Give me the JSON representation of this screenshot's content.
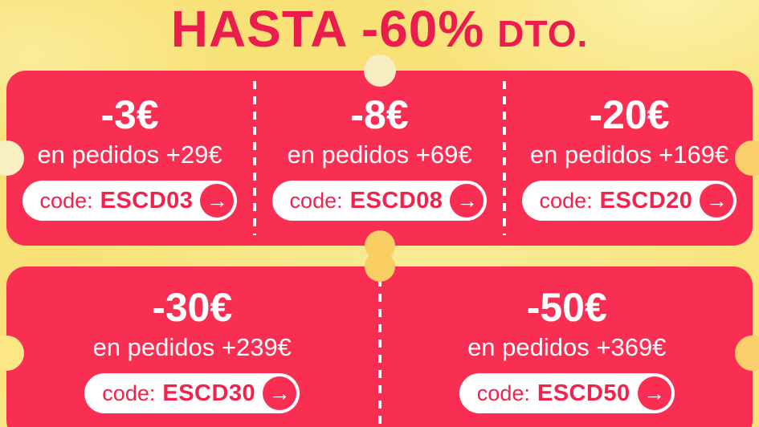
{
  "title": {
    "main": "HASTA -60%",
    "suffix": "DTO."
  },
  "icons": {
    "arrow_right": "→"
  },
  "colors": {
    "background_yellow": "#F8E177",
    "banner_red": "#F82E53",
    "title_red": "#EB1D4E",
    "pill_text_red": "#F3224D",
    "notch_cream": "#F6EEC2",
    "notch_gold": "#F9CE63",
    "text_white": "#FFFFFF"
  },
  "rows": [
    {
      "coupons": [
        {
          "discount": "-3€",
          "condition": "en pedidos +29€",
          "code_label": "code:",
          "code": "ESCD03"
        },
        {
          "discount": "-8€",
          "condition": "en pedidos +69€",
          "code_label": "code:",
          "code": "ESCD08"
        },
        {
          "discount": "-20€",
          "condition": "en pedidos +169€",
          "code_label": "code:",
          "code": "ESCD20"
        }
      ]
    },
    {
      "coupons": [
        {
          "discount": "-30€",
          "condition": "en pedidos +239€",
          "code_label": "code:",
          "code": "ESCD30"
        },
        {
          "discount": "-50€",
          "condition": "en pedidos +369€",
          "code_label": "code:",
          "code": "ESCD50"
        }
      ]
    }
  ]
}
